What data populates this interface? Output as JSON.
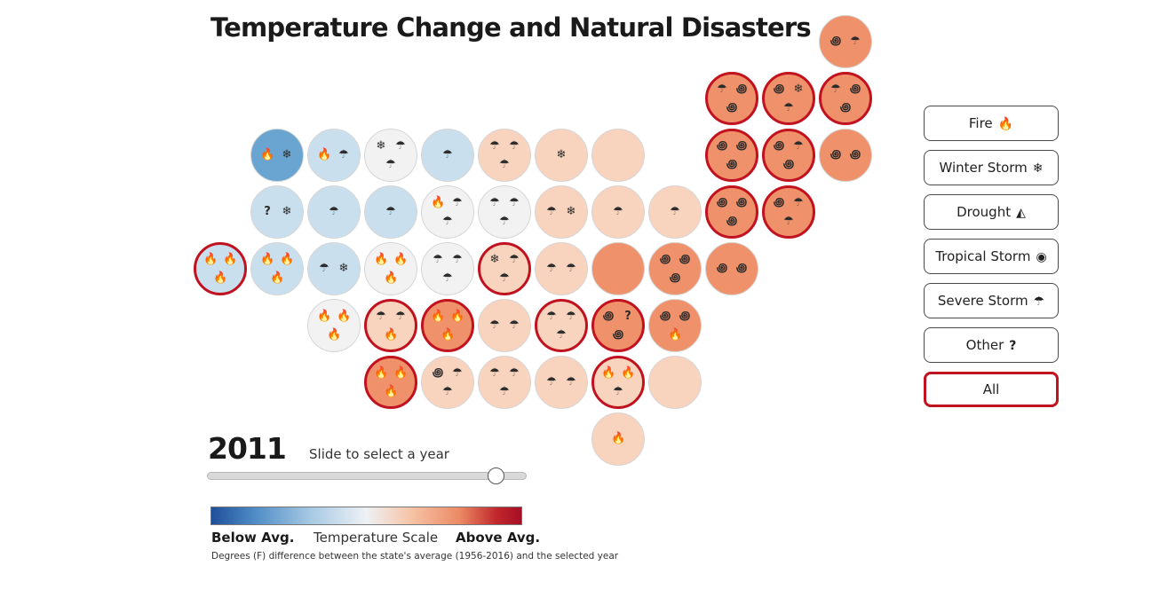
{
  "title": "Temperature Change and Natural Disasters",
  "year": "2011",
  "slider_label": "Slide to select a year",
  "slider_value_fraction": 0.91,
  "legend": {
    "below": "Below Avg.",
    "title": "Temperature Scale",
    "above": "Above Avg.",
    "note": "Degrees (F) difference between the state's average (1956-2016) and the selected year"
  },
  "filters": [
    {
      "label": "Fire",
      "icon": "🔥",
      "icon_name": "fire-icon"
    },
    {
      "label": "Winter Storm",
      "icon": "❄",
      "icon_name": "snowflake-icon"
    },
    {
      "label": "Drought",
      "icon": "◭",
      "icon_name": "drought-icon"
    },
    {
      "label": "Tropical Storm",
      "icon": "◉",
      "icon_name": "hurricane-icon"
    },
    {
      "label": "Severe Storm",
      "icon": "☂",
      "icon_name": "storm-cloud-icon"
    },
    {
      "label": "Other",
      "icon": "?",
      "icon_name": "question-icon"
    },
    {
      "label": "All",
      "icon": "",
      "icon_name": ""
    }
  ],
  "active_filter": "All",
  "icon_glyphs": {
    "F": "🔥",
    "W": "❄",
    "S": "☂",
    "T": "꩜",
    "O": "?"
  },
  "colors": {
    "highlight": "#c1121f",
    "scale": {
      "-3": "#6aa5d2",
      "-2": "#c9dfee",
      "-1": "#d0e3f1",
      "0": "#f2f2f2",
      "1": "#f8d3bd",
      "2": "#f4b397",
      "3": "#ef916b"
    }
  },
  "tiles": [
    {
      "row": 0,
      "col": 11,
      "level": 3,
      "highlight": false,
      "icons": [
        "T",
        "S"
      ]
    },
    {
      "row": 1,
      "col": 9,
      "level": 3,
      "highlight": true,
      "icons": [
        "S",
        "T",
        "T"
      ]
    },
    {
      "row": 1,
      "col": 10,
      "level": 3,
      "highlight": true,
      "icons": [
        "T",
        "W",
        "S"
      ]
    },
    {
      "row": 1,
      "col": 11,
      "level": 3,
      "highlight": true,
      "icons": [
        "S",
        "T",
        "T"
      ]
    },
    {
      "row": 2,
      "col": 1,
      "level": -3,
      "highlight": false,
      "icons": [
        "F",
        "W"
      ]
    },
    {
      "row": 2,
      "col": 2,
      "level": -2,
      "highlight": false,
      "icons": [
        "F",
        "S"
      ]
    },
    {
      "row": 2,
      "col": 3,
      "level": 0,
      "highlight": false,
      "icons": [
        "W",
        "S",
        "S"
      ]
    },
    {
      "row": 2,
      "col": 4,
      "level": -2,
      "highlight": false,
      "icons": [
        "S"
      ]
    },
    {
      "row": 2,
      "col": 5,
      "level": 1,
      "highlight": false,
      "icons": [
        "S",
        "S",
        "S"
      ]
    },
    {
      "row": 2,
      "col": 6,
      "level": 1,
      "highlight": false,
      "icons": [
        "W"
      ]
    },
    {
      "row": 2,
      "col": 7,
      "level": 1,
      "highlight": false,
      "icons": []
    },
    {
      "row": 2,
      "col": 9,
      "level": 3,
      "highlight": true,
      "icons": [
        "T",
        "T",
        "T"
      ]
    },
    {
      "row": 2,
      "col": 10,
      "level": 3,
      "highlight": true,
      "icons": [
        "T",
        "S",
        "T"
      ]
    },
    {
      "row": 2,
      "col": 11,
      "level": 3,
      "highlight": false,
      "icons": [
        "T",
        "T"
      ]
    },
    {
      "row": 3,
      "col": 1,
      "level": -2,
      "highlight": false,
      "icons": [
        "O",
        "W"
      ]
    },
    {
      "row": 3,
      "col": 2,
      "level": -2,
      "highlight": false,
      "icons": [
        "S"
      ]
    },
    {
      "row": 3,
      "col": 3,
      "level": -2,
      "highlight": false,
      "icons": [
        "S"
      ]
    },
    {
      "row": 3,
      "col": 4,
      "level": 0,
      "highlight": false,
      "icons": [
        "F",
        "S",
        "S"
      ]
    },
    {
      "row": 3,
      "col": 5,
      "level": 0,
      "highlight": false,
      "icons": [
        "S",
        "S",
        "S"
      ]
    },
    {
      "row": 3,
      "col": 6,
      "level": 1,
      "highlight": false,
      "icons": [
        "S",
        "W"
      ]
    },
    {
      "row": 3,
      "col": 7,
      "level": 1,
      "highlight": false,
      "icons": [
        "S"
      ]
    },
    {
      "row": 3,
      "col": 8,
      "level": 1,
      "highlight": false,
      "icons": [
        "S"
      ]
    },
    {
      "row": 3,
      "col": 9,
      "level": 3,
      "highlight": true,
      "icons": [
        "T",
        "T",
        "T"
      ]
    },
    {
      "row": 3,
      "col": 10,
      "level": 3,
      "highlight": true,
      "icons": [
        "T",
        "S",
        "S"
      ]
    },
    {
      "row": 4,
      "col": 0,
      "level": -2,
      "highlight": true,
      "icons": [
        "F",
        "F",
        "F"
      ]
    },
    {
      "row": 4,
      "col": 1,
      "level": -2,
      "highlight": false,
      "icons": [
        "F",
        "F",
        "F"
      ]
    },
    {
      "row": 4,
      "col": 2,
      "level": -2,
      "highlight": false,
      "icons": [
        "S",
        "W"
      ]
    },
    {
      "row": 4,
      "col": 3,
      "level": 0,
      "highlight": false,
      "icons": [
        "F",
        "F",
        "F"
      ]
    },
    {
      "row": 4,
      "col": 4,
      "level": 0,
      "highlight": false,
      "icons": [
        "S",
        "S",
        "S"
      ]
    },
    {
      "row": 4,
      "col": 5,
      "level": 1,
      "highlight": true,
      "icons": [
        "W",
        "S",
        "S"
      ]
    },
    {
      "row": 4,
      "col": 6,
      "level": 1,
      "highlight": false,
      "icons": [
        "S",
        "S"
      ]
    },
    {
      "row": 4,
      "col": 7,
      "level": 3,
      "highlight": false,
      "icons": []
    },
    {
      "row": 4,
      "col": 8,
      "level": 3,
      "highlight": false,
      "icons": [
        "T",
        "T",
        "T"
      ]
    },
    {
      "row": 4,
      "col": 9,
      "level": 3,
      "highlight": false,
      "icons": [
        "T",
        "T"
      ]
    },
    {
      "row": 5,
      "col": 2,
      "level": 0,
      "highlight": false,
      "icons": [
        "F",
        "F",
        "F"
      ]
    },
    {
      "row": 5,
      "col": 3,
      "level": 1,
      "highlight": true,
      "icons": [
        "S",
        "S",
        "F"
      ]
    },
    {
      "row": 5,
      "col": 4,
      "level": 3,
      "highlight": true,
      "icons": [
        "F",
        "F",
        "F"
      ]
    },
    {
      "row": 5,
      "col": 5,
      "level": 1,
      "highlight": false,
      "icons": [
        "S",
        "S"
      ]
    },
    {
      "row": 5,
      "col": 6,
      "level": 1,
      "highlight": true,
      "icons": [
        "S",
        "S",
        "S"
      ]
    },
    {
      "row": 5,
      "col": 7,
      "level": 3,
      "highlight": true,
      "icons": [
        "T",
        "O",
        "T"
      ]
    },
    {
      "row": 5,
      "col": 8,
      "level": 3,
      "highlight": false,
      "icons": [
        "T",
        "T",
        "F"
      ]
    },
    {
      "row": 6,
      "col": 3,
      "level": 3,
      "highlight": true,
      "icons": [
        "F",
        "F",
        "F"
      ]
    },
    {
      "row": 6,
      "col": 4,
      "level": 1,
      "highlight": false,
      "icons": [
        "T",
        "S",
        "S"
      ]
    },
    {
      "row": 6,
      "col": 5,
      "level": 1,
      "highlight": false,
      "icons": [
        "S",
        "S",
        "S"
      ]
    },
    {
      "row": 6,
      "col": 6,
      "level": 1,
      "highlight": false,
      "icons": [
        "S",
        "S"
      ]
    },
    {
      "row": 6,
      "col": 7,
      "level": 1,
      "highlight": true,
      "icons": [
        "F",
        "F",
        "S"
      ]
    },
    {
      "row": 6,
      "col": 8,
      "level": 1,
      "highlight": false,
      "icons": []
    },
    {
      "row": 7,
      "col": 7,
      "level": 1,
      "highlight": false,
      "icons": [
        "F"
      ]
    }
  ]
}
